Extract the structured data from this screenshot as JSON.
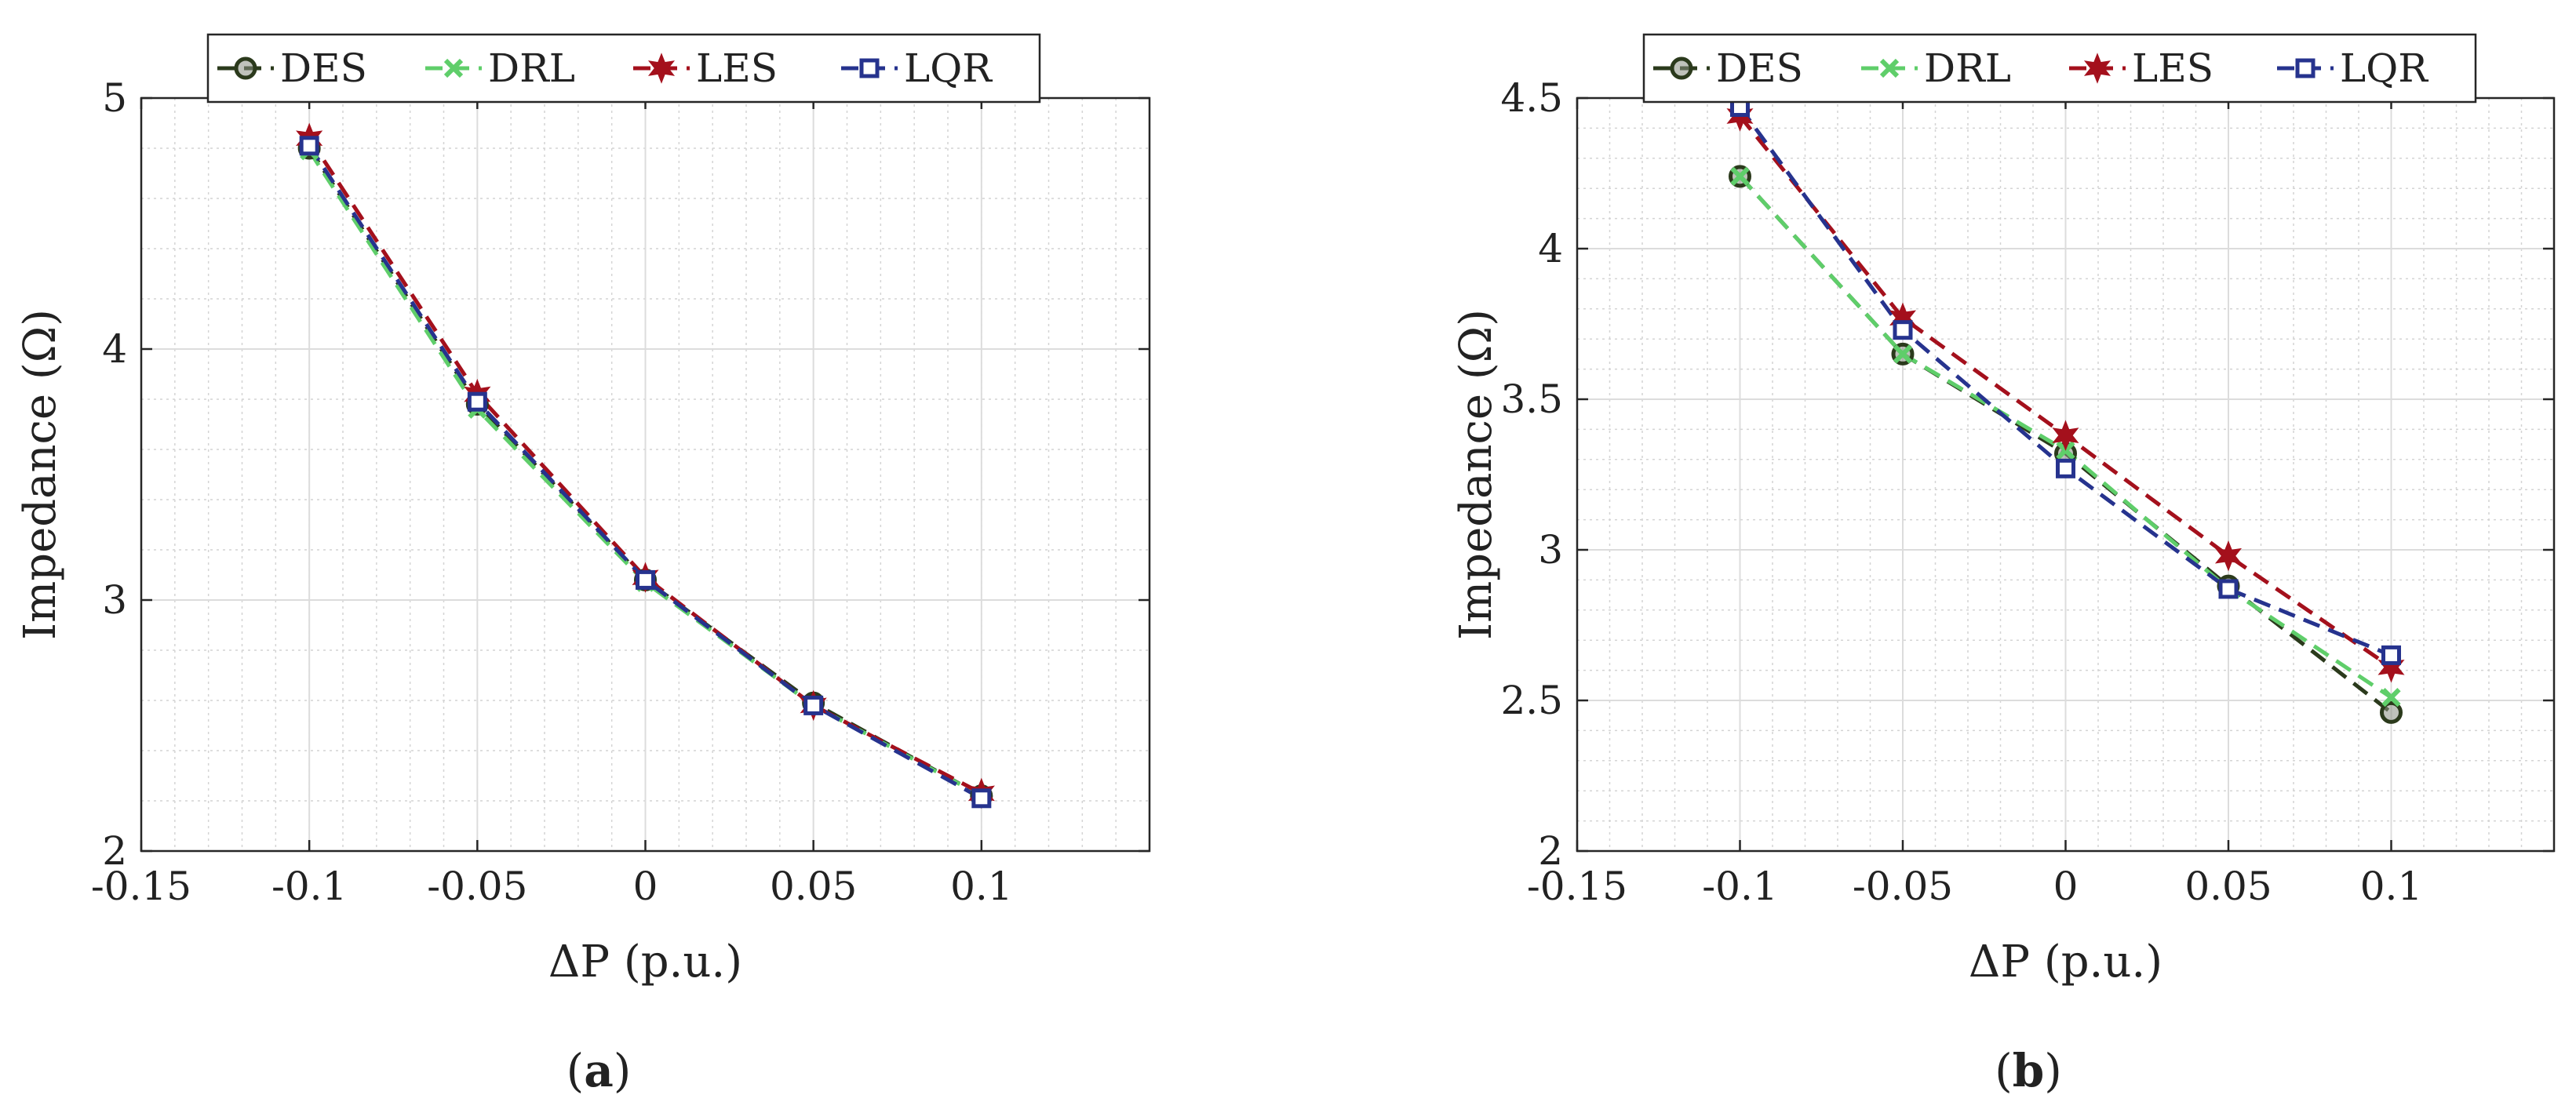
{
  "panels": [
    {
      "caption_open": "(",
      "caption_letter": "a",
      "caption_close": ")"
    },
    {
      "caption_open": "(",
      "caption_letter": "b",
      "caption_close": ")"
    }
  ],
  "chart_data": [
    {
      "type": "line",
      "panel": "a",
      "title": "",
      "xlabel": "ΔP (p.u.)",
      "ylabel": "Impedance (Ω)",
      "xlim": [
        -0.15,
        0.15
      ],
      "ylim": [
        2,
        5
      ],
      "xticks": [
        -0.15,
        -0.1,
        -0.05,
        0,
        0.05,
        0.1
      ],
      "xtick_labels": [
        "-0.15",
        "-0.1",
        "-0.05",
        "0",
        "0.05",
        "0.1"
      ],
      "yticks": [
        2,
        3,
        4,
        5
      ],
      "ytick_labels": [
        "2",
        "3",
        "4",
        "5"
      ],
      "grid": true,
      "minor_grid": true,
      "legend_position": "top",
      "x": [
        -0.1,
        -0.05,
        0,
        0.05,
        0.1
      ],
      "series": [
        {
          "name": "DES",
          "color": "#2b3a1c",
          "marker": "circle",
          "values": [
            4.8,
            3.78,
            3.08,
            2.59,
            2.22
          ]
        },
        {
          "name": "DRL",
          "color": "#5fce6a",
          "marker": "x",
          "values": [
            4.79,
            3.76,
            3.07,
            2.58,
            2.22
          ]
        },
        {
          "name": "LES",
          "color": "#a4101c",
          "marker": "star",
          "values": [
            4.84,
            3.82,
            3.09,
            2.58,
            2.23
          ]
        },
        {
          "name": "LQR",
          "color": "#26338e",
          "marker": "square",
          "values": [
            4.81,
            3.79,
            3.08,
            2.58,
            2.21
          ]
        }
      ]
    },
    {
      "type": "line",
      "panel": "b",
      "title": "",
      "xlabel": "ΔP (p.u.)",
      "ylabel": "Impedance (Ω)",
      "xlim": [
        -0.15,
        0.15
      ],
      "ylim": [
        2,
        4.5
      ],
      "xticks": [
        -0.15,
        -0.1,
        -0.05,
        0,
        0.05,
        0.1
      ],
      "xtick_labels": [
        "-0.15",
        "-0.1",
        "-0.05",
        "0",
        "0.05",
        "0.1"
      ],
      "yticks": [
        2,
        2.5,
        3,
        3.5,
        4,
        4.5
      ],
      "ytick_labels": [
        "2",
        "2.5",
        "3",
        "3.5",
        "4",
        "4.5"
      ],
      "grid": true,
      "minor_grid": true,
      "legend_position": "top",
      "x": [
        -0.1,
        -0.05,
        0,
        0.05,
        0.1
      ],
      "series": [
        {
          "name": "DES",
          "color": "#2b3a1c",
          "marker": "circle",
          "values": [
            4.24,
            3.65,
            3.32,
            2.88,
            2.46
          ]
        },
        {
          "name": "DRL",
          "color": "#5fce6a",
          "marker": "x",
          "values": [
            4.24,
            3.65,
            3.33,
            2.87,
            2.51
          ]
        },
        {
          "name": "LES",
          "color": "#a4101c",
          "marker": "star",
          "values": [
            4.44,
            3.77,
            3.38,
            2.98,
            2.61
          ]
        },
        {
          "name": "LQR",
          "color": "#26338e",
          "marker": "square",
          "values": [
            4.47,
            3.73,
            3.27,
            2.87,
            2.65
          ]
        }
      ]
    }
  ]
}
